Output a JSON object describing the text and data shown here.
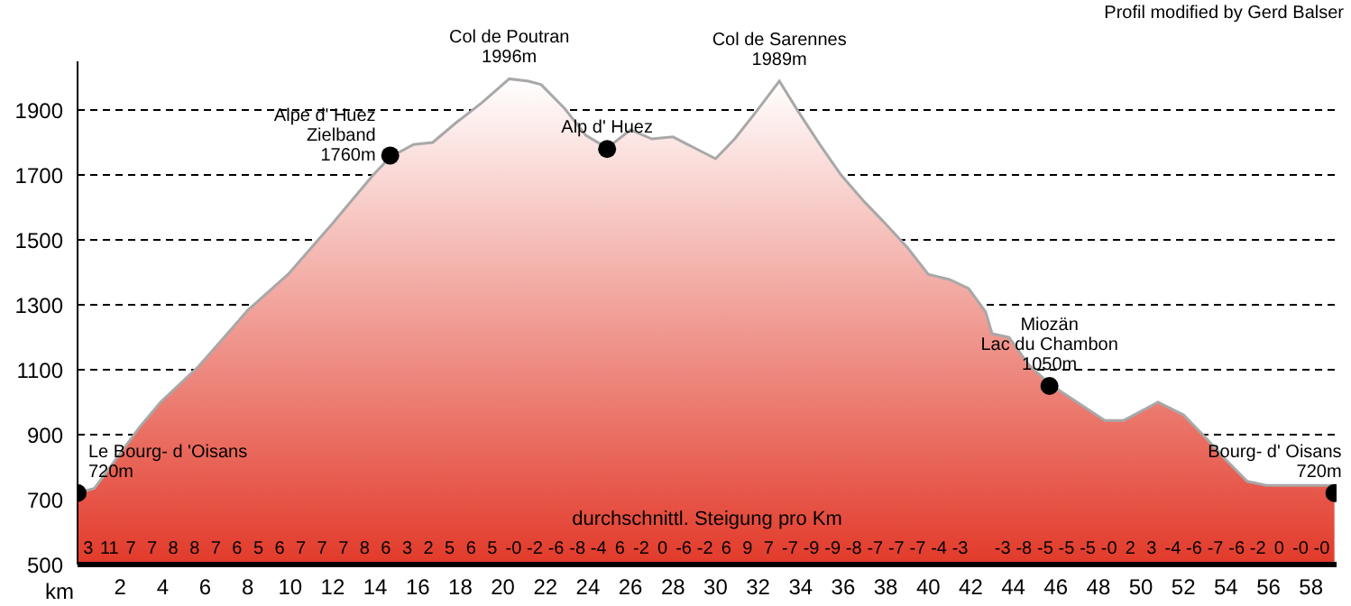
{
  "chart_data": {
    "type": "area",
    "title": "Profil modified by Gerd Balser",
    "xlabel": "km",
    "xlim": [
      0,
      59.2
    ],
    "xticks": [
      2,
      4,
      6,
      8,
      10,
      12,
      14,
      16,
      18,
      20,
      22,
      24,
      26,
      28,
      30,
      32,
      34,
      36,
      38,
      40,
      42,
      44,
      46,
      48,
      50,
      52,
      54,
      56,
      58
    ],
    "ylim": [
      500,
      2050
    ],
    "yticks": [
      500,
      700,
      900,
      1100,
      1300,
      1500,
      1700,
      1900
    ],
    "grid": "y",
    "legend": false,
    "series": [
      {
        "color": "#e23a2a",
        "x": [
          0,
          0.8,
          2.9,
          3.9,
          5.7,
          8.0,
          9.9,
          11.9,
          13.9,
          14.7,
          15.8,
          16.7,
          17.8,
          19.0,
          20.3,
          21.2,
          21.8,
          22.9,
          23.9,
          24.9,
          26.0,
          27.0,
          28.0,
          30.0,
          30.9,
          31.9,
          33.0,
          33.9,
          34.9,
          35.9,
          37.0,
          37.9,
          39.0,
          40.0,
          41.0,
          41.9,
          42.7,
          43.0,
          43.8,
          44.7,
          45.7,
          47.0,
          48.3,
          49.2,
          50.0,
          50.8,
          52.0,
          53.0,
          54.0,
          55.0,
          55.9,
          59.1
        ],
        "values": [
          720,
          735,
          922,
          1000,
          1111,
          1283,
          1394,
          1544,
          1700,
          1755,
          1794,
          1800,
          1861,
          1922,
          1996,
          1989,
          1978,
          1905,
          1822,
          1783,
          1839,
          1811,
          1817,
          1750,
          1811,
          1894,
          1989,
          1894,
          1794,
          1700,
          1617,
          1556,
          1478,
          1394,
          1378,
          1350,
          1278,
          1211,
          1200,
          1117,
          1056,
          1000,
          944,
          944,
          972,
          1000,
          961,
          894,
          822,
          756,
          744,
          744
        ]
      },
      {
        "type": "scatter",
        "color": "#000000",
        "x": [
          0,
          14.7,
          24.9,
          45.7,
          59.1
        ],
        "values": [
          720,
          1760,
          1780,
          1050,
          720
        ]
      }
    ],
    "annotations": [
      "durchschnittl. Steigung pro Km",
      {
        "text": "Le Bourg- d 'Oisans\n720m",
        "x": 0,
        "y": 720
      },
      {
        "text": "Alpe d' Huez\nZielband\n1760m",
        "x": 14.7,
        "y": 1760
      },
      {
        "text": "Col de Poutran\n1996m",
        "x": 20.3,
        "y": 1996
      },
      {
        "text": "Alp d' Huez",
        "x": 24.9,
        "y": 1780
      },
      {
        "text": "Col de Sarennes\n1989m",
        "x": 33,
        "y": 1989
      },
      {
        "text": "Miozän\nLac du Chambon\n1050m",
        "x": 45.7,
        "y": 1050
      },
      {
        "text": "Bourg- d' Oisans\n720m",
        "x": 59.1,
        "y": 720
      },
      "3 11 7 7 8 8 7 6 5 6 7 7 7 8 6 3 2 5 6 5 -0 -2 -6 -8 -4 6 -2 0 -6 -2 6 9 7 -7 -9 -9 -8 -7 -7 -7 -4 -3  -3 -8 -5 -5 -5 -0 2 3 -4 -6 -7 -6 -2 0 -0 -0"
    ]
  }
}
